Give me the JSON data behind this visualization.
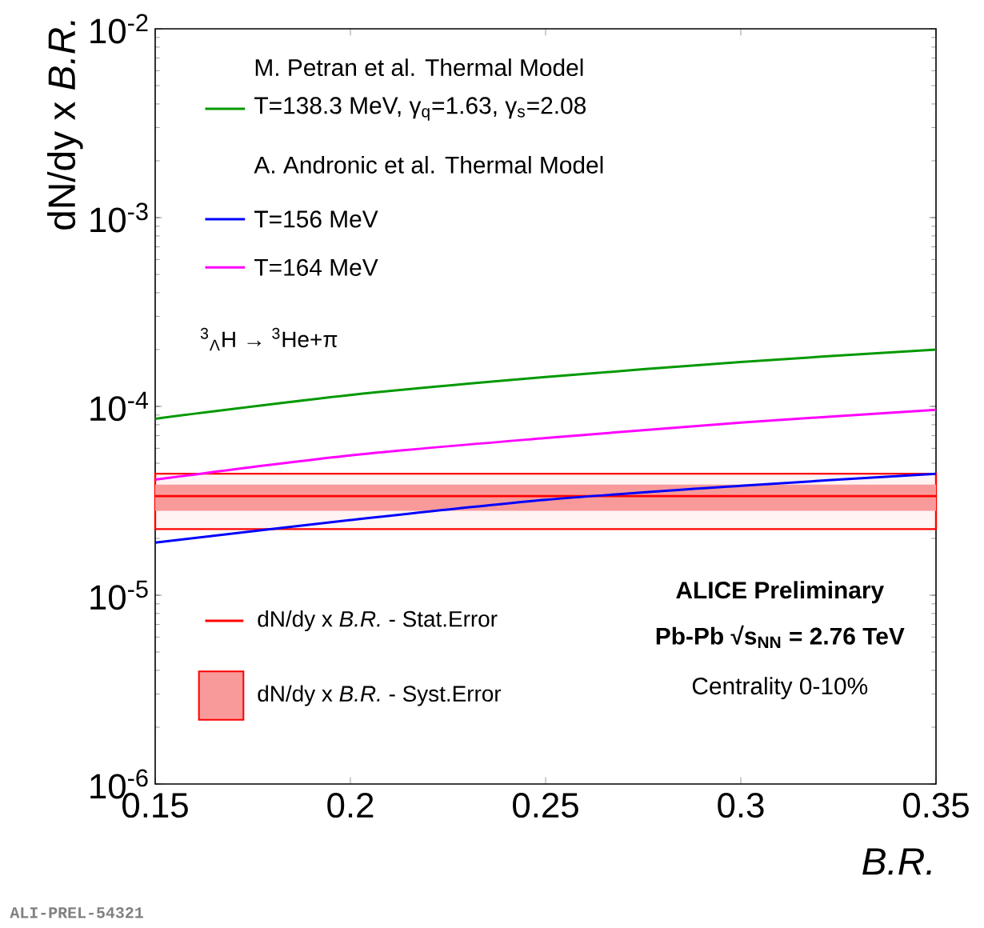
{
  "chart_data": {
    "type": "line",
    "xlabel": "B.R.",
    "ylabel": "dN/dy x *B.R.*",
    "x": [
      0.15,
      0.2,
      0.25,
      0.3,
      0.35
    ],
    "series": [
      {
        "name": "T=138.3 MeV, γ$_{q}$=1.63, γ$_{s}$=2.08",
        "color": "#009900",
        "values": [
          8.6e-05,
          0.000115,
          0.000143,
          0.000172,
          0.0002
        ]
      },
      {
        "name": "T=156 MeV",
        "color": "#0000ff",
        "values": [
          1.9e-05,
          2.5e-05,
          3.2e-05,
          3.8e-05,
          4.4e-05
        ]
      },
      {
        "name": "T=164 MeV",
        "color": "#ff00ff",
        "values": [
          4.1e-05,
          5.5e-05,
          6.8e-05,
          8.2e-05,
          9.6e-05
        ]
      }
    ],
    "bands": [
      {
        "axis": "y",
        "from": 2.24e-05,
        "to": 4.4e-05,
        "color": "#fff3f3"
      },
      {
        "axis": "y",
        "from": 2.8e-05,
        "to": 3.85e-05,
        "label": "dN/dy x *B.R.* - Syst.Error",
        "color": "#f89a9a"
      }
    ],
    "ref_lines": [
      {
        "axis": "y",
        "value": 3.35e-05,
        "color": "#ff0000",
        "label": "dN/dy x *B.R.* - Stat.Error"
      }
    ],
    "annotations": [
      "M. Petran et al. Thermal Model",
      "A. Andronic et al. Thermal Model",
      "$^{3}$$_{Λ}$H → $^{3}$He+π",
      "ALICE Preliminary",
      "Pb-Pb √s$_{NN}$ = 2.76 TeV",
      "Centrality 0-10%",
      "ALI-PREL-54321"
    ],
    "xlim": [
      0.15,
      0.35
    ],
    "ylim": [
      1e-06,
      0.01
    ],
    "log": "y",
    "xticks": [
      0.15,
      0.2,
      0.25,
      0.3,
      0.35
    ],
    "yticks": [
      {
        "value": 1e-06,
        "label": "10$^{-6}$"
      },
      {
        "value": 1e-05,
        "label": "10$^{-5}$"
      },
      {
        "value": 0.0001,
        "label": "10$^{-4}$"
      },
      {
        "value": 0.001,
        "label": "10$^{-3}$"
      },
      {
        "value": 0.01,
        "label": "10$^{-2}$"
      }
    ],
    "grid": false,
    "legend": "left"
  }
}
